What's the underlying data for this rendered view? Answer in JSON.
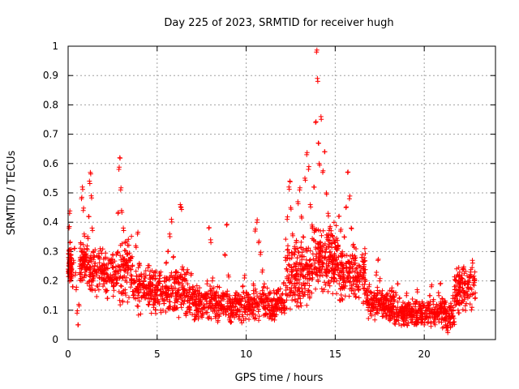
{
  "chart_data": {
    "type": "scatter",
    "title": "Day 225 of 2023, SRMTID for receiver hugh",
    "xlabel": "GPS time / hours",
    "ylabel": "SRMTID / TECUs",
    "xlim": [
      0,
      24
    ],
    "ylim": [
      0,
      1
    ],
    "xticks": [
      0,
      5,
      10,
      15,
      20
    ],
    "xtick_labels": [
      "0",
      "5",
      "10",
      "15",
      "20"
    ],
    "yticks": [
      0,
      0.1,
      0.2,
      0.3,
      0.4,
      0.5,
      0.6,
      0.7,
      0.8,
      0.9,
      1
    ],
    "ytick_labels": [
      "0",
      "0.1",
      "0.2",
      "0.3",
      "0.4",
      "0.5",
      "0.6",
      "0.7",
      "0.8",
      "0.9",
      "1"
    ],
    "grid": true,
    "marker": "+",
    "series": [
      {
        "name": "SRMTID",
        "color": "#ff0000",
        "points": [
          [
            0.0,
            0.24
          ],
          [
            0.05,
            0.38
          ],
          [
            0.08,
            0.43
          ],
          [
            0.1,
            0.33
          ],
          [
            0.15,
            0.29
          ],
          [
            0.2,
            0.21
          ],
          [
            0.25,
            0.18
          ],
          [
            0.3,
            0.27
          ],
          [
            0.35,
            0.31
          ],
          [
            0.4,
            0.22
          ],
          [
            0.45,
            0.17
          ],
          [
            0.5,
            0.09
          ],
          [
            0.55,
            0.05
          ],
          [
            0.6,
            0.12
          ],
          [
            0.65,
            0.25
          ],
          [
            0.7,
            0.33
          ],
          [
            0.75,
            0.48
          ],
          [
            0.8,
            0.52
          ],
          [
            0.85,
            0.44
          ],
          [
            0.9,
            0.36
          ],
          [
            0.95,
            0.29
          ],
          [
            1.0,
            0.27
          ],
          [
            1.05,
            0.31
          ],
          [
            1.1,
            0.35
          ],
          [
            1.15,
            0.42
          ],
          [
            1.2,
            0.54
          ],
          [
            1.25,
            0.57
          ],
          [
            1.3,
            0.49
          ],
          [
            1.35,
            0.38
          ],
          [
            1.4,
            0.3
          ],
          [
            1.5,
            0.26
          ],
          [
            1.6,
            0.22
          ],
          [
            1.7,
            0.28
          ],
          [
            1.8,
            0.31
          ],
          [
            1.9,
            0.25
          ],
          [
            2.0,
            0.2
          ],
          [
            2.1,
            0.17
          ],
          [
            2.2,
            0.14
          ],
          [
            2.3,
            0.21
          ],
          [
            2.4,
            0.26
          ],
          [
            2.5,
            0.29
          ],
          [
            2.6,
            0.23
          ],
          [
            2.7,
            0.19
          ],
          [
            2.8,
            0.43
          ],
          [
            2.85,
            0.58
          ],
          [
            2.9,
            0.62
          ],
          [
            2.95,
            0.51
          ],
          [
            3.0,
            0.44
          ],
          [
            3.1,
            0.38
          ],
          [
            3.2,
            0.33
          ],
          [
            3.3,
            0.29
          ],
          [
            3.4,
            0.24
          ],
          [
            3.5,
            0.28
          ],
          [
            3.6,
            0.25
          ],
          [
            3.7,
            0.2
          ],
          [
            3.8,
            0.32
          ],
          [
            3.9,
            0.36
          ],
          [
            4.0,
            0.26
          ],
          [
            4.1,
            0.22
          ],
          [
            4.2,
            0.18
          ],
          [
            4.3,
            0.21
          ],
          [
            4.4,
            0.15
          ],
          [
            4.5,
            0.12
          ],
          [
            4.6,
            0.19
          ],
          [
            4.7,
            0.16
          ],
          [
            4.8,
            0.11
          ],
          [
            4.9,
            0.14
          ],
          [
            5.0,
            0.17
          ],
          [
            5.1,
            0.13
          ],
          [
            5.2,
            0.1
          ],
          [
            5.3,
            0.14
          ],
          [
            5.4,
            0.2
          ],
          [
            5.5,
            0.26
          ],
          [
            5.6,
            0.3
          ],
          [
            5.7,
            0.36
          ],
          [
            5.8,
            0.41
          ],
          [
            5.9,
            0.28
          ],
          [
            6.0,
            0.21
          ],
          [
            6.1,
            0.15
          ],
          [
            6.2,
            0.19
          ],
          [
            6.3,
            0.46
          ],
          [
            6.35,
            0.45
          ],
          [
            6.4,
            0.24
          ],
          [
            6.5,
            0.16
          ],
          [
            6.6,
            0.09
          ],
          [
            6.7,
            0.13
          ],
          [
            6.8,
            0.17
          ],
          [
            6.9,
            0.22
          ],
          [
            7.0,
            0.18
          ],
          [
            7.1,
            0.12
          ],
          [
            7.2,
            0.1
          ],
          [
            7.3,
            0.15
          ],
          [
            7.4,
            0.13
          ],
          [
            7.5,
            0.08
          ],
          [
            7.6,
            0.11
          ],
          [
            7.7,
            0.14
          ],
          [
            7.8,
            0.19
          ],
          [
            7.9,
            0.38
          ],
          [
            8.0,
            0.34
          ],
          [
            8.1,
            0.2
          ],
          [
            8.2,
            0.15
          ],
          [
            8.3,
            0.09
          ],
          [
            8.4,
            0.06
          ],
          [
            8.5,
            0.08
          ],
          [
            8.6,
            0.12
          ],
          [
            8.7,
            0.16
          ],
          [
            8.8,
            0.29
          ],
          [
            8.9,
            0.39
          ],
          [
            9.0,
            0.22
          ],
          [
            9.1,
            0.13
          ],
          [
            9.2,
            0.09
          ],
          [
            9.3,
            0.11
          ],
          [
            9.4,
            0.15
          ],
          [
            9.5,
            0.1
          ],
          [
            9.6,
            0.07
          ],
          [
            9.7,
            0.13
          ],
          [
            9.8,
            0.18
          ],
          [
            9.9,
            0.21
          ],
          [
            10.0,
            0.16
          ],
          [
            10.1,
            0.12
          ],
          [
            10.2,
            0.11
          ],
          [
            10.3,
            0.14
          ],
          [
            10.4,
            0.19
          ],
          [
            10.5,
            0.37
          ],
          [
            10.6,
            0.4
          ],
          [
            10.7,
            0.33
          ],
          [
            10.8,
            0.29
          ],
          [
            10.9,
            0.23
          ],
          [
            11.0,
            0.18
          ],
          [
            11.1,
            0.15
          ],
          [
            11.2,
            0.11
          ],
          [
            11.3,
            0.09
          ],
          [
            11.4,
            0.13
          ],
          [
            11.5,
            0.1
          ],
          [
            11.6,
            0.08
          ],
          [
            11.7,
            0.12
          ],
          [
            11.8,
            0.17
          ],
          [
            11.9,
            0.14
          ],
          [
            12.0,
            0.11
          ],
          [
            12.1,
            0.19
          ],
          [
            12.2,
            0.28
          ],
          [
            12.3,
            0.41
          ],
          [
            12.4,
            0.52
          ],
          [
            12.45,
            0.54
          ],
          [
            12.5,
            0.45
          ],
          [
            12.6,
            0.36
          ],
          [
            12.7,
            0.29
          ],
          [
            12.8,
            0.33
          ],
          [
            12.9,
            0.47
          ],
          [
            13.0,
            0.51
          ],
          [
            13.1,
            0.42
          ],
          [
            13.2,
            0.35
          ],
          [
            13.3,
            0.55
          ],
          [
            13.4,
            0.63
          ],
          [
            13.5,
            0.58
          ],
          [
            13.6,
            0.46
          ],
          [
            13.7,
            0.39
          ],
          [
            13.8,
            0.52
          ],
          [
            13.9,
            0.74
          ],
          [
            13.95,
            0.98
          ],
          [
            14.0,
            0.89
          ],
          [
            14.05,
            0.67
          ],
          [
            14.1,
            0.6
          ],
          [
            14.2,
            0.76
          ],
          [
            14.3,
            0.57
          ],
          [
            14.4,
            0.64
          ],
          [
            14.5,
            0.5
          ],
          [
            14.6,
            0.43
          ],
          [
            14.7,
            0.38
          ],
          [
            14.8,
            0.33
          ],
          [
            14.9,
            0.27
          ],
          [
            15.0,
            0.24
          ],
          [
            15.1,
            0.31
          ],
          [
            15.2,
            0.42
          ],
          [
            15.3,
            0.37
          ],
          [
            15.4,
            0.29
          ],
          [
            15.5,
            0.35
          ],
          [
            15.6,
            0.45
          ],
          [
            15.7,
            0.57
          ],
          [
            15.8,
            0.48
          ],
          [
            15.9,
            0.38
          ],
          [
            16.0,
            0.32
          ],
          [
            16.1,
            0.26
          ],
          [
            16.2,
            0.21
          ],
          [
            16.3,
            0.17
          ],
          [
            16.4,
            0.23
          ],
          [
            16.5,
            0.28
          ],
          [
            16.6,
            0.22
          ],
          [
            16.7,
            0.16
          ],
          [
            16.8,
            0.13
          ],
          [
            16.9,
            0.18
          ],
          [
            17.0,
            0.14
          ],
          [
            17.1,
            0.11
          ],
          [
            17.2,
            0.15
          ],
          [
            17.3,
            0.22
          ],
          [
            17.4,
            0.27
          ],
          [
            17.5,
            0.2
          ],
          [
            17.6,
            0.13
          ],
          [
            17.7,
            0.08
          ],
          [
            17.8,
            0.1
          ],
          [
            17.9,
            0.14
          ],
          [
            18.0,
            0.11
          ],
          [
            18.1,
            0.07
          ],
          [
            18.2,
            0.09
          ],
          [
            18.3,
            0.13
          ],
          [
            18.4,
            0.16
          ],
          [
            18.5,
            0.19
          ],
          [
            18.6,
            0.14
          ],
          [
            18.7,
            0.1
          ],
          [
            18.8,
            0.07
          ],
          [
            18.9,
            0.11
          ],
          [
            19.0,
            0.15
          ],
          [
            19.1,
            0.12
          ],
          [
            19.2,
            0.08
          ],
          [
            19.3,
            0.06
          ],
          [
            19.4,
            0.1
          ],
          [
            19.5,
            0.13
          ],
          [
            19.6,
            0.17
          ],
          [
            19.7,
            0.12
          ],
          [
            19.8,
            0.09
          ],
          [
            19.9,
            0.06
          ],
          [
            20.0,
            0.05
          ],
          [
            20.1,
            0.08
          ],
          [
            20.2,
            0.11
          ],
          [
            20.3,
            0.15
          ],
          [
            20.4,
            0.18
          ],
          [
            20.5,
            0.13
          ],
          [
            20.6,
            0.1
          ],
          [
            20.7,
            0.12
          ],
          [
            20.8,
            0.16
          ],
          [
            20.9,
            0.19
          ],
          [
            21.0,
            0.14
          ],
          [
            21.1,
            0.09
          ],
          [
            21.2,
            0.05
          ],
          [
            21.3,
            0.03
          ],
          [
            21.4,
            0.07
          ],
          [
            21.5,
            0.1
          ],
          [
            21.6,
            0.14
          ],
          [
            21.7,
            0.18
          ],
          [
            21.8,
            0.13
          ],
          [
            21.9,
            0.1
          ],
          [
            22.0,
            0.16
          ],
          [
            22.1,
            0.21
          ],
          [
            22.2,
            0.24
          ],
          [
            22.3,
            0.19
          ],
          [
            22.4,
            0.15
          ],
          [
            22.5,
            0.2
          ],
          [
            22.6,
            0.23
          ],
          [
            22.7,
            0.27
          ],
          [
            22.8,
            0.2
          ],
          [
            22.85,
            0.14
          ]
        ],
        "density_points": [
          [
            0.02,
            0.2,
            0.2,
            0.3,
            90
          ],
          [
            0.65,
            1.1,
            0.2,
            0.32,
            70
          ],
          [
            1.1,
            2.8,
            0.16,
            0.3,
            160
          ],
          [
            2.8,
            3.6,
            0.14,
            0.34,
            90
          ],
          [
            3.6,
            5.2,
            0.1,
            0.25,
            160
          ],
          [
            5.2,
            6.8,
            0.09,
            0.23,
            170
          ],
          [
            6.8,
            8.5,
            0.07,
            0.18,
            170
          ],
          [
            8.5,
            10.4,
            0.06,
            0.16,
            170
          ],
          [
            10.4,
            12.2,
            0.07,
            0.17,
            160
          ],
          [
            12.2,
            13.7,
            0.12,
            0.32,
            200
          ],
          [
            13.7,
            15.2,
            0.17,
            0.38,
            220
          ],
          [
            15.2,
            16.7,
            0.14,
            0.3,
            170
          ],
          [
            16.7,
            18.3,
            0.07,
            0.17,
            170
          ],
          [
            18.3,
            20.5,
            0.05,
            0.13,
            210
          ],
          [
            20.5,
            21.7,
            0.04,
            0.13,
            120
          ],
          [
            21.7,
            22.9,
            0.1,
            0.24,
            120
          ]
        ]
      }
    ]
  }
}
